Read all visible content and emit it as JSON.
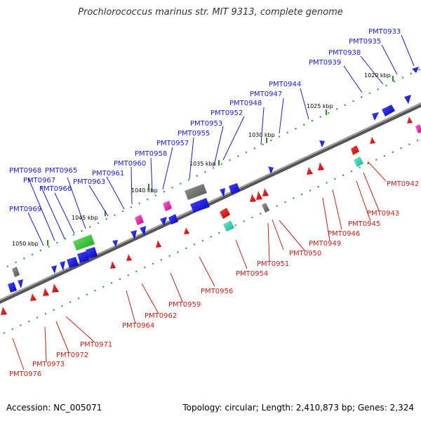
{
  "title": "Prochlorococcus marinus str. MIT 9313, complete genome",
  "footer": {
    "accession": "Accession: NC_005071",
    "summary": "Topology: circular; Length: 2,410,873 bp; Genes: 2,324"
  },
  "colors": {
    "forward_label": "#1a1acc",
    "reverse_label": "#cc1a1a",
    "backbone": "#777777",
    "tick": "#2a8a2a"
  },
  "kbp_markers": [
    "1020 kbp",
    "1025 kbp",
    "1030 kbp",
    "1035 kbp",
    "1040 kbp",
    "1045 kbp",
    "1050 kbp"
  ],
  "forward_labels": [
    "PMT0933",
    "PMT0935",
    "PMT0938",
    "PMT0939",
    "PMT0944",
    "PMT0947",
    "PMT0948",
    "PMT0952",
    "PMT0953",
    "PMT0955",
    "PMT0957",
    "PMT0958",
    "PMT0960",
    "PMT0961",
    "PMT0963",
    "PMT0965",
    "PMT0966",
    "PMT0967",
    "PMT0968",
    "PMT0969"
  ],
  "reverse_labels": [
    "PMT0942",
    "PMT0943",
    "PMT0945",
    "PMT0946",
    "PMT0949",
    "PMT0950",
    "PMT0951",
    "PMT0954",
    "PMT0956",
    "PMT0959",
    "PMT0962",
    "PMT0964",
    "PMT0971",
    "PMT0972",
    "PMT0973",
    "PMT0976"
  ]
}
